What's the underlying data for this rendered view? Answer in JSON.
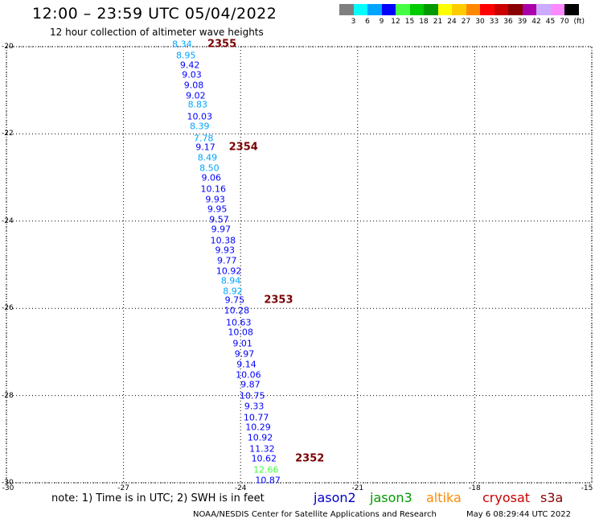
{
  "title": "12:00 – 23:59 UTC 05/04/2022",
  "subtitle": "12 hour collection of altimeter wave heights",
  "legend": {
    "unit": "(ft)",
    "bins": [
      {
        "label": "3",
        "color": "#7f7f7f"
      },
      {
        "label": "6",
        "color": "#00ffff"
      },
      {
        "label": "9",
        "color": "#00a5ff"
      },
      {
        "label": "12",
        "color": "#0000ff"
      },
      {
        "label": "15",
        "color": "#44ff44"
      },
      {
        "label": "18",
        "color": "#00cc00"
      },
      {
        "label": "21",
        "color": "#009900"
      },
      {
        "label": "24",
        "color": "#ffff00"
      },
      {
        "label": "27",
        "color": "#ffcc00"
      },
      {
        "label": "30",
        "color": "#ff8800"
      },
      {
        "label": "33",
        "color": "#ff0000"
      },
      {
        "label": "36",
        "color": "#cc0000"
      },
      {
        "label": "39",
        "color": "#880000"
      },
      {
        "label": "42",
        "color": "#aa00aa"
      },
      {
        "label": "45",
        "color": "#ccaaff"
      },
      {
        "label": "70",
        "color": "#ff88ff"
      },
      {
        "label": "",
        "color": "#000000"
      }
    ]
  },
  "map": {
    "xlim": [
      -30,
      -15
    ],
    "ylim": [
      -30,
      -20
    ],
    "xticks": [
      "-30",
      "-27",
      "-24",
      "-21",
      "-18",
      "-15"
    ],
    "yticks": [
      "-20",
      "-22",
      "-24",
      "-26",
      "-28",
      "-30"
    ],
    "observations": [
      {
        "lon": -25.5,
        "lat": -19.95,
        "v": "8.34",
        "c": "#00a5ff"
      },
      {
        "lon": -25.4,
        "lat": -20.2,
        "v": "8.95",
        "c": "#00a5ff"
      },
      {
        "lon": -25.3,
        "lat": -20.42,
        "v": "9.42",
        "c": "#0000ff"
      },
      {
        "lon": -25.25,
        "lat": -20.65,
        "v": "9.03",
        "c": "#0000ff"
      },
      {
        "lon": -25.2,
        "lat": -20.88,
        "v": "9.08",
        "c": "#0000ff"
      },
      {
        "lon": -25.15,
        "lat": -21.12,
        "v": "9.02",
        "c": "#0000ff"
      },
      {
        "lon": -25.1,
        "lat": -21.32,
        "v": "8.83",
        "c": "#00a5ff"
      },
      {
        "lon": -25.05,
        "lat": -21.6,
        "v": "10.03",
        "c": "#0000ff"
      },
      {
        "lon": -25.05,
        "lat": -21.83,
        "v": "8.39",
        "c": "#00a5ff"
      },
      {
        "lon": -24.95,
        "lat": -22.1,
        "v": "7.78",
        "c": "#00a5ff"
      },
      {
        "lon": -24.9,
        "lat": -22.3,
        "v": "9.17",
        "c": "#0000ff"
      },
      {
        "lon": -24.85,
        "lat": -22.55,
        "v": "8.49",
        "c": "#00a5ff"
      },
      {
        "lon": -24.8,
        "lat": -22.78,
        "v": "8.50",
        "c": "#00a5ff"
      },
      {
        "lon": -24.75,
        "lat": -23.0,
        "v": "9.06",
        "c": "#0000ff"
      },
      {
        "lon": -24.7,
        "lat": -23.27,
        "v": "10.16",
        "c": "#0000ff"
      },
      {
        "lon": -24.65,
        "lat": -23.5,
        "v": "9.93",
        "c": "#0000ff"
      },
      {
        "lon": -24.6,
        "lat": -23.73,
        "v": "9.95",
        "c": "#0000ff"
      },
      {
        "lon": -24.55,
        "lat": -23.96,
        "v": "9.57",
        "c": "#0000ff"
      },
      {
        "lon": -24.5,
        "lat": -24.19,
        "v": "9.97",
        "c": "#0000ff"
      },
      {
        "lon": -24.45,
        "lat": -24.45,
        "v": "10.38",
        "c": "#0000ff"
      },
      {
        "lon": -24.4,
        "lat": -24.67,
        "v": "9.93",
        "c": "#0000ff"
      },
      {
        "lon": -24.35,
        "lat": -24.9,
        "v": "9.77",
        "c": "#0000ff"
      },
      {
        "lon": -24.3,
        "lat": -25.15,
        "v": "10.92",
        "c": "#0000ff"
      },
      {
        "lon": -24.25,
        "lat": -25.37,
        "v": "8.94",
        "c": "#00a5ff"
      },
      {
        "lon": -24.2,
        "lat": -25.6,
        "v": "8.92",
        "c": "#00a5ff"
      },
      {
        "lon": -24.15,
        "lat": -25.82,
        "v": "9.75",
        "c": "#0000ff"
      },
      {
        "lon": -24.1,
        "lat": -26.05,
        "v": "10.28",
        "c": "#0000ff"
      },
      {
        "lon": -24.05,
        "lat": -26.32,
        "v": "10.63",
        "c": "#0000ff"
      },
      {
        "lon": -24.0,
        "lat": -26.55,
        "v": "10.08",
        "c": "#0000ff"
      },
      {
        "lon": -23.95,
        "lat": -26.8,
        "v": "9.01",
        "c": "#0000ff"
      },
      {
        "lon": -23.9,
        "lat": -27.05,
        "v": "9.97",
        "c": "#0000ff"
      },
      {
        "lon": -23.85,
        "lat": -27.28,
        "v": "9.14",
        "c": "#0000ff"
      },
      {
        "lon": -23.8,
        "lat": -27.53,
        "v": "10.06",
        "c": "#0000ff"
      },
      {
        "lon": -23.75,
        "lat": -27.75,
        "v": "9.87",
        "c": "#0000ff"
      },
      {
        "lon": -23.7,
        "lat": -28.0,
        "v": "10.75",
        "c": "#0000ff"
      },
      {
        "lon": -23.65,
        "lat": -28.25,
        "v": "9.33",
        "c": "#0000ff"
      },
      {
        "lon": -23.6,
        "lat": -28.5,
        "v": "10.77",
        "c": "#0000ff"
      },
      {
        "lon": -23.55,
        "lat": -28.73,
        "v": "10.29",
        "c": "#0000ff"
      },
      {
        "lon": -23.5,
        "lat": -28.97,
        "v": "10.92",
        "c": "#0000ff"
      },
      {
        "lon": -23.45,
        "lat": -29.22,
        "v": "11.32",
        "c": "#0000ff"
      },
      {
        "lon": -23.4,
        "lat": -29.45,
        "v": "10.62",
        "c": "#0000ff"
      },
      {
        "lon": -23.35,
        "lat": -29.7,
        "v": "12.66",
        "c": "#44ff44"
      },
      {
        "lon": -23.3,
        "lat": -29.95,
        "v": "10.87",
        "c": "#0000ff"
      }
    ],
    "pass_times": [
      {
        "lon": -24.85,
        "lat": -19.95,
        "label": "2355"
      },
      {
        "lon": -24.3,
        "lat": -22.3,
        "label": "2354"
      },
      {
        "lon": -23.4,
        "lat": -25.82,
        "label": "2353"
      },
      {
        "lon": -22.6,
        "lat": -29.45,
        "label": "2352"
      }
    ]
  },
  "note": "note:  1) Time is in UTC;  2) SWH is in feet",
  "satellites": [
    {
      "name": "jason2",
      "color": "#0000cc"
    },
    {
      "name": "jason3",
      "color": "#009900"
    },
    {
      "name": "altika",
      "color": "#ff8800"
    },
    {
      "name": "cryosat",
      "color": "#cc0000"
    },
    {
      "name": "s3a",
      "color": "#880000"
    }
  ],
  "credit": "NOAA/NESDIS Center for Satellite Applications and Research",
  "timestamp": "May  6 08:29:44 UTC 2022"
}
